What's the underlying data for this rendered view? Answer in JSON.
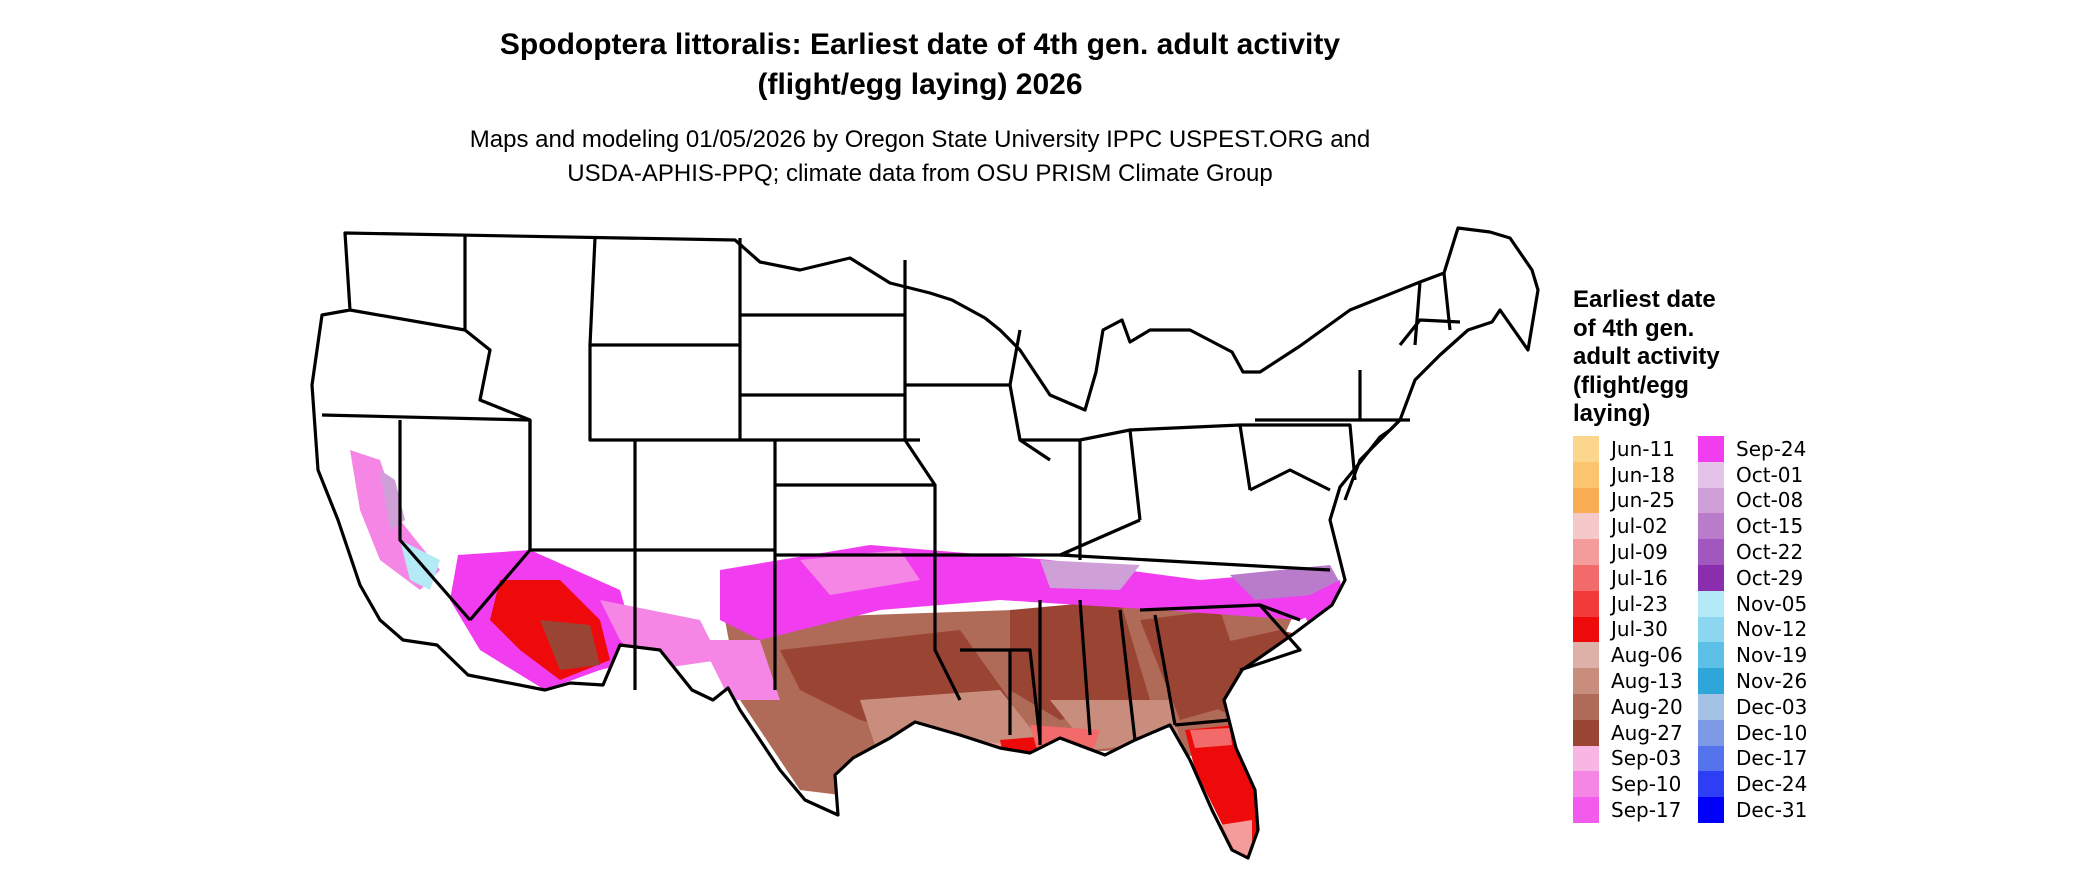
{
  "title_line1": "Spodoptera littoralis: Earliest date of 4th gen. adult activity",
  "title_line2": "(flight/egg laying) 2026",
  "subtitle_line1": "Maps and modeling 01/05/2026 by Oregon State University IPPC USPEST.ORG and",
  "subtitle_line2": "USDA-APHIS-PPQ; climate data from OSU PRISM Climate Group",
  "legend": {
    "title_lines": [
      "Earliest date",
      "of 4th gen.",
      "adult activity",
      "(flight/egg",
      "laying)"
    ],
    "items": [
      {
        "label": "Jun-11",
        "color": "#FCD68C"
      },
      {
        "label": "Jun-18",
        "color": "#FBC46E"
      },
      {
        "label": "Jun-25",
        "color": "#F9AE55"
      },
      {
        "label": "Jul-02",
        "color": "#F6C9C9"
      },
      {
        "label": "Jul-09",
        "color": "#F49C9C"
      },
      {
        "label": "Jul-16",
        "color": "#F26A6A"
      },
      {
        "label": "Jul-23",
        "color": "#F23A3A"
      },
      {
        "label": "Jul-30",
        "color": "#EE0A0A"
      },
      {
        "label": "Aug-06",
        "color": "#DDB0A8"
      },
      {
        "label": "Aug-13",
        "color": "#C98D7E"
      },
      {
        "label": "Aug-20",
        "color": "#B06A58"
      },
      {
        "label": "Aug-27",
        "color": "#9A4434"
      },
      {
        "label": "Sep-03",
        "color": "#F9B6E4"
      },
      {
        "label": "Sep-10",
        "color": "#F586E6"
      },
      {
        "label": "Sep-17",
        "color": "#F25BEC"
      },
      {
        "label": "Sep-24",
        "color": "#F23CF0"
      },
      {
        "label": "Oct-01",
        "color": "#E3C4E8"
      },
      {
        "label": "Oct-08",
        "color": "#CFA0D8"
      },
      {
        "label": "Oct-15",
        "color": "#B97CCB"
      },
      {
        "label": "Oct-22",
        "color": "#A257BE"
      },
      {
        "label": "Oct-29",
        "color": "#8A2EAE"
      },
      {
        "label": "Nov-05",
        "color": "#B4EAF6"
      },
      {
        "label": "Nov-12",
        "color": "#8CD6F0"
      },
      {
        "label": "Nov-19",
        "color": "#5CC0E6"
      },
      {
        "label": "Nov-26",
        "color": "#2EA6DA"
      },
      {
        "label": "Dec-03",
        "color": "#A4C2E6"
      },
      {
        "label": "Dec-10",
        "color": "#7C9AE6"
      },
      {
        "label": "Dec-17",
        "color": "#5673EE"
      },
      {
        "label": "Dec-24",
        "color": "#2E3EF4"
      },
      {
        "label": "Dec-31",
        "color": "#0000FA"
      }
    ]
  }
}
